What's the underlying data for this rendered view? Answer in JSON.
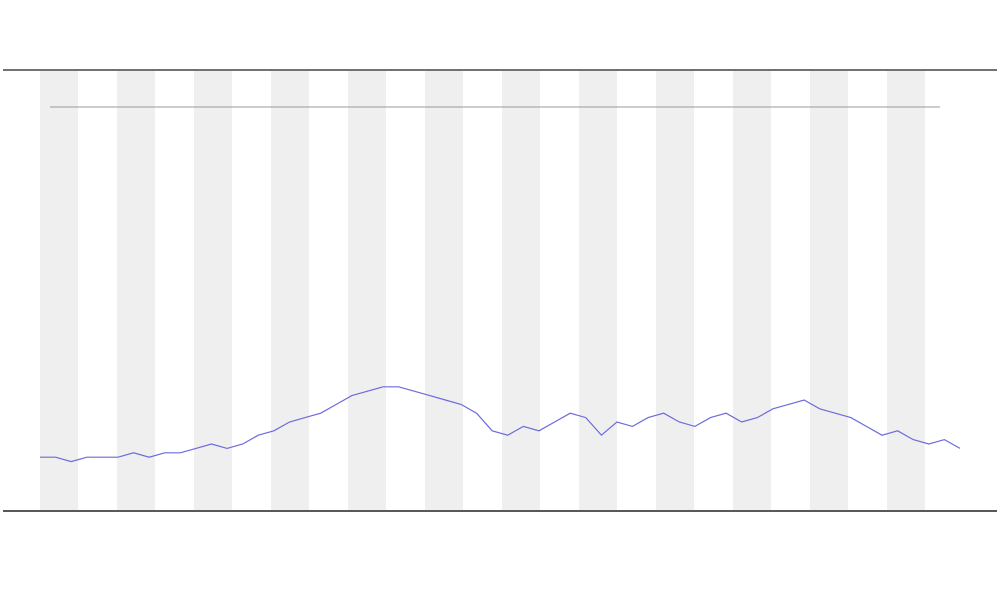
{
  "chart_data": {
    "type": "line",
    "x": [
      0,
      1,
      2,
      3,
      4,
      5,
      6,
      7,
      8,
      9,
      10,
      11,
      12,
      13,
      14,
      15,
      16,
      17,
      18,
      19,
      20,
      21,
      22,
      23,
      24,
      25,
      26,
      27,
      28,
      29,
      30,
      31,
      32,
      33,
      34,
      35,
      36,
      37,
      38,
      39,
      40,
      41,
      42,
      43,
      44,
      45,
      46,
      47,
      48,
      49,
      50,
      51,
      52,
      53,
      54,
      55,
      56,
      57,
      58,
      59
    ],
    "series": [
      {
        "color": "#6b6bdc",
        "values": [
          12,
          12,
          11,
          12,
          12,
          12,
          13,
          12,
          13,
          13,
          14,
          15,
          14,
          15,
          17,
          18,
          20,
          21,
          22,
          24,
          26,
          27,
          28,
          28,
          27,
          26,
          25,
          24,
          22,
          18,
          17,
          19,
          18,
          20,
          22,
          21,
          17,
          20,
          19,
          21,
          22,
          20,
          19,
          21,
          22,
          20,
          21,
          23,
          24,
          25,
          23,
          22,
          21,
          19,
          17,
          18,
          16,
          15,
          16,
          14
        ]
      }
    ],
    "xlim": [
      0,
      59
    ],
    "ylim": [
      0,
      100
    ]
  }
}
